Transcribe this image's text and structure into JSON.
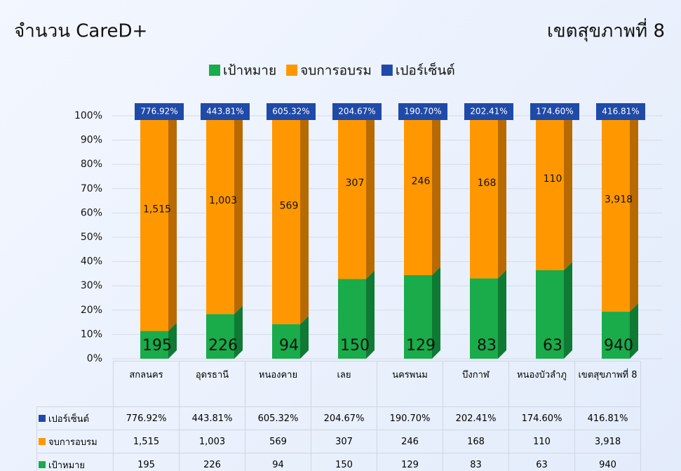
{
  "chart_data": {
    "type": "stacked_bar_3d",
    "title": "จำนวน CareD+",
    "subtitle": "เขตสุขภาพที่ 8",
    "categories": [
      "สกลนคร",
      "อุดรธานี",
      "หนองคาย",
      "เลย",
      "นครพนม",
      "บึงกาฬ",
      "หนองบัวลำภู",
      "เขตสุขภาพที่ 8"
    ],
    "series": [
      {
        "name": "เป้าหมาย",
        "color": "#1aab4b",
        "values": [
          195,
          226,
          94,
          150,
          129,
          83,
          63,
          940
        ]
      },
      {
        "name": "จบการอบรม",
        "color": "#ff9800",
        "values": [
          1515,
          1003,
          569,
          307,
          246,
          168,
          110,
          3918
        ],
        "value_labels": [
          "1,515",
          "1,003",
          "569",
          "307",
          "246",
          "168",
          "110",
          "3,918"
        ]
      },
      {
        "name": "เปอร์เซ็นต์",
        "color": "#1f4aa8",
        "values": [
          776.92,
          443.81,
          605.32,
          204.67,
          190.7,
          202.41,
          174.6,
          416.81
        ],
        "value_labels": [
          "776.92%",
          "443.81%",
          "605.32%",
          "204.67%",
          "190.70%",
          "202.41%",
          "174.60%",
          "416.81%"
        ]
      }
    ],
    "ylim": [
      0,
      100
    ],
    "yticks": [
      {
        "value": 0,
        "label": "0%"
      },
      {
        "value": 10,
        "label": "10%"
      },
      {
        "value": 20,
        "label": "20%"
      },
      {
        "value": 30,
        "label": "30%"
      },
      {
        "value": 40,
        "label": "40%"
      },
      {
        "value": 50,
        "label": "50%"
      },
      {
        "value": 60,
        "label": "60%"
      },
      {
        "value": 70,
        "label": "70%"
      },
      {
        "value": 80,
        "label": "80%"
      },
      {
        "value": 90,
        "label": "90%"
      },
      {
        "value": 100,
        "label": "100%"
      }
    ],
    "grid": true,
    "legend": "top"
  }
}
